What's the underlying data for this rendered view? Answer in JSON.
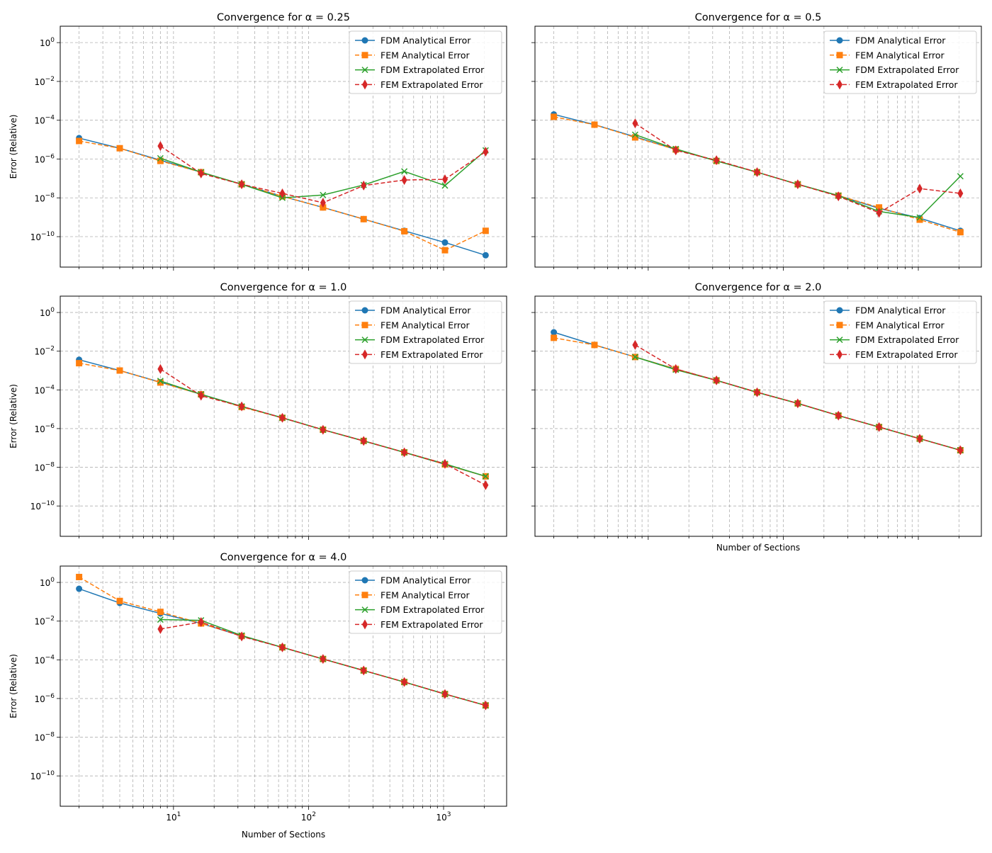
{
  "chart_data": {
    "type": "line",
    "x": [
      2,
      4,
      8,
      16,
      32,
      64,
      128,
      256,
      512,
      1024,
      2048
    ],
    "xscale": "log",
    "yscale": "log",
    "xlim": [
      1.45,
      2930
    ],
    "ylim": [
      2.7e-12,
      7
    ],
    "grid": true,
    "legend_placement": "top-right",
    "xlabel": "Number of Sections",
    "ylabel": "Error (Relative)",
    "x_tick_labels": [
      "10^1",
      "10^2",
      "10^3"
    ],
    "y_tick_labels": [
      "10^0",
      "10^-2",
      "10^-4",
      "10^-6",
      "10^-8",
      "10^-10"
    ],
    "series_styles": [
      {
        "name": "FDM Analytical Error",
        "color": "#1f77b4",
        "dash": "solid",
        "marker": "circle"
      },
      {
        "name": "FEM Analytical Error",
        "color": "#ff7f0e",
        "dash": "dashed",
        "marker": "square"
      },
      {
        "name": "FDM Extrapolated Error",
        "color": "#2ca02c",
        "dash": "solid",
        "marker": "x"
      },
      {
        "name": "FEM Extrapolated Error",
        "color": "#d62728",
        "dash": "dashed",
        "marker": "diamond"
      }
    ],
    "panels": [
      {
        "title": "Convergence for α = 0.25",
        "series": [
          {
            "name": "FDM Analytical Error",
            "values": [
              1.2e-05,
              3.6e-06,
              8.7e-07,
              2.1e-07,
              5e-08,
              1.2e-08,
              3.2e-09,
              8e-10,
              2e-10,
              5e-11,
              1.1e-11
            ]
          },
          {
            "name": "FEM Analytical Error",
            "values": [
              8.5e-06,
              3.6e-06,
              8e-07,
              2.1e-07,
              5e-08,
              1.2e-08,
              3.2e-09,
              8e-10,
              1.9e-10,
              2e-11,
              2e-10
            ]
          },
          {
            "name": "FDM Extrapolated Error",
            "values": [
              null,
              null,
              1.1e-06,
              2.1e-07,
              5e-08,
              1e-08,
              1.4e-08,
              4.6e-08,
              2.3e-07,
              4.3e-08,
              2.8e-06
            ]
          },
          {
            "name": "FEM Extrapolated Error",
            "values": [
              null,
              null,
              4.7e-06,
              1.8e-07,
              5e-08,
              1.7e-08,
              5.6e-09,
              4.3e-08,
              8.3e-08,
              9e-08,
              2.4e-06
            ]
          }
        ]
      },
      {
        "title": "Convergence for α = 0.5",
        "series": [
          {
            "name": "FDM Analytical Error",
            "values": [
              0.0002,
              5.9e-05,
              1.4e-05,
              3.1e-06,
              8e-07,
              2.1e-07,
              5e-08,
              1.3e-08,
              2.9e-09,
              9e-10,
              2e-10
            ]
          },
          {
            "name": "FEM Analytical Error",
            "values": [
              0.00015,
              5.9e-05,
              1.3e-05,
              3.1e-06,
              8e-07,
              2.1e-07,
              5e-08,
              1.3e-08,
              3.2e-09,
              7.5e-10,
              1.7e-10
            ]
          },
          {
            "name": "FDM Extrapolated Error",
            "values": [
              null,
              null,
              1.8e-05,
              3.3e-06,
              8e-07,
              2.1e-07,
              5e-08,
              1.3e-08,
              2e-09,
              9.7e-10,
              1.3e-07
            ]
          },
          {
            "name": "FEM Extrapolated Error",
            "values": [
              null,
              null,
              6.9e-05,
              2.8e-06,
              8.7e-07,
              2.1e-07,
              5e-08,
              1.2e-08,
              1.7e-09,
              3e-08,
              1.7e-08
            ]
          }
        ]
      },
      {
        "title": "Convergence for α = 1.0",
        "series": [
          {
            "name": "FDM Analytical Error",
            "values": [
              0.0036,
              0.001,
              0.00025,
              5.9e-05,
              1.4e-05,
              3.6e-06,
              8.7e-07,
              2.3e-07,
              5.9e-08,
              1.4e-08,
              3.4e-09
            ]
          },
          {
            "name": "FEM Analytical Error",
            "values": [
              0.0024,
              0.001,
              0.00024,
              5.9e-05,
              1.3e-05,
              3.6e-06,
              8.7e-07,
              2.3e-07,
              5.9e-08,
              1.4e-08,
              3.4e-09
            ]
          },
          {
            "name": "FDM Extrapolated Error",
            "values": [
              null,
              null,
              0.00029,
              5.9e-05,
              1.4e-05,
              3.6e-06,
              8.7e-07,
              2.3e-07,
              5.9e-08,
              1.5e-08,
              3.4e-09
            ]
          },
          {
            "name": "FEM Extrapolated Error",
            "values": [
              null,
              null,
              0.0012,
              5e-05,
              1.4e-05,
              3.6e-06,
              8.7e-07,
              2.3e-07,
              5.9e-08,
              1.5e-08,
              1.2e-09
            ]
          }
        ]
      },
      {
        "title": "Convergence for α = 2.0",
        "series": [
          {
            "name": "FDM Analytical Error",
            "values": [
              0.095,
              0.021,
              0.005,
              0.0012,
              0.00031,
              7.5e-05,
              2e-05,
              4.7e-06,
              1.2e-06,
              3e-07,
              7.6e-08
            ]
          },
          {
            "name": "FEM Analytical Error",
            "values": [
              0.049,
              0.021,
              0.005,
              0.0012,
              0.00031,
              7.5e-05,
              2e-05,
              4.7e-06,
              1.2e-06,
              3e-07,
              7.6e-08
            ]
          },
          {
            "name": "FDM Extrapolated Error",
            "values": [
              null,
              null,
              0.005,
              0.0011,
              0.00031,
              7.5e-05,
              2e-05,
              4.7e-06,
              1.2e-06,
              3e-07,
              7.6e-08
            ]
          },
          {
            "name": "FEM Extrapolated Error",
            "values": [
              null,
              null,
              0.021,
              0.0012,
              0.00031,
              7.5e-05,
              2e-05,
              4.7e-06,
              1.2e-06,
              3e-07,
              7.6e-08
            ]
          }
        ]
      },
      {
        "title": "Convergence for α = 4.0",
        "series": [
          {
            "name": "FDM Analytical Error",
            "values": [
              0.47,
              0.087,
              0.025,
              0.0076,
              0.0017,
              0.00044,
              0.00011,
              2.8e-05,
              7.1e-06,
              1.7e-06,
              4.4e-07
            ]
          },
          {
            "name": "FEM Analytical Error",
            "values": [
              1.9,
              0.11,
              0.03,
              0.0076,
              0.0017,
              0.00044,
              0.00011,
              2.8e-05,
              7.1e-06,
              1.7e-06,
              4.4e-07
            ]
          },
          {
            "name": "FDM Extrapolated Error",
            "values": [
              null,
              null,
              0.012,
              0.011,
              0.0018,
              0.00044,
              0.00011,
              2.8e-05,
              7.1e-06,
              1.7e-06,
              4.4e-07
            ]
          },
          {
            "name": "FEM Extrapolated Error",
            "values": [
              null,
              null,
              0.0039,
              0.009,
              0.0016,
              0.00044,
              0.00011,
              2.8e-05,
              7.1e-06,
              1.7e-06,
              4.4e-07
            ]
          }
        ]
      }
    ]
  }
}
